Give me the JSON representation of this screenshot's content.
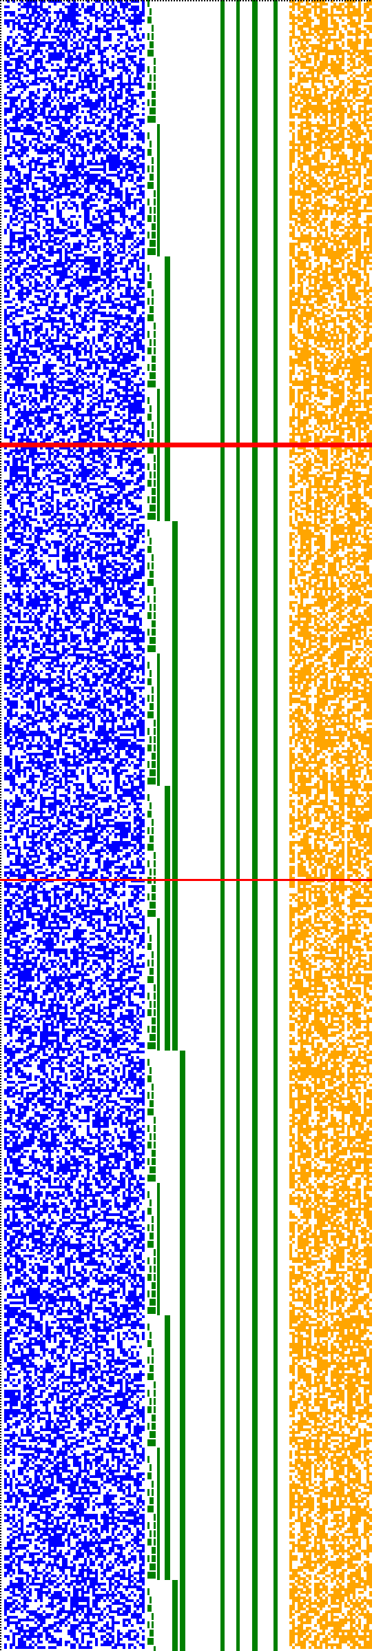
{
  "figure": {
    "kind": "binary-matrix-visualization",
    "background": "#ffffff",
    "panels": [
      {
        "name": "random-bit-matrix",
        "color": "#0000ff",
        "pattern": "dense-random-bits",
        "fill_density": 0.55
      },
      {
        "name": "staircase-counter",
        "color": "#008000",
        "pattern": "binary-counter-staircase"
      },
      {
        "name": "static-bit-columns",
        "color": "#008000",
        "pattern": "solid-vertical-columns",
        "count": 4
      },
      {
        "name": "orange-bit-matrix",
        "color": "#ffa500",
        "pattern": "dense-random-bits",
        "fill_density": 0.7
      }
    ],
    "markers": [
      {
        "name": "marker-line-thick",
        "color": "#ff0000",
        "style": "thick-horizontal"
      },
      {
        "name": "marker-line-thin",
        "color": "#ff0000",
        "style": "thin-horizontal"
      }
    ],
    "borders": {
      "left": {
        "color": "#000000",
        "style": "dotted"
      },
      "top": {
        "color": "#000000",
        "style": "dotted"
      }
    }
  }
}
